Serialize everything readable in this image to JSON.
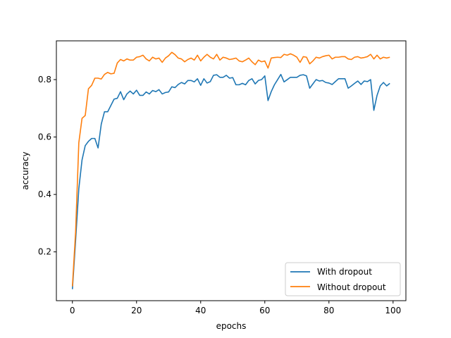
{
  "chart_data": {
    "type": "line",
    "title": "",
    "xlabel": "epochs",
    "ylabel": "accuracy",
    "xlim": [
      -5,
      104
    ],
    "ylim": [
      0.03,
      0.935
    ],
    "xticks": [
      0,
      20,
      40,
      60,
      80,
      100
    ],
    "yticks": [
      0.2,
      0.4,
      0.6,
      0.8
    ],
    "grid": false,
    "legend_position": "lower-right",
    "series": [
      {
        "name": "With dropout",
        "color": "#1f77b4",
        "x": [
          0,
          1,
          2,
          3,
          4,
          5,
          6,
          7,
          8,
          9,
          10,
          11,
          12,
          13,
          14,
          15,
          16,
          17,
          18,
          19,
          20,
          21,
          22,
          23,
          24,
          25,
          26,
          27,
          28,
          29,
          30,
          31,
          32,
          33,
          34,
          35,
          36,
          37,
          38,
          39,
          40,
          41,
          42,
          43,
          44,
          45,
          46,
          47,
          48,
          49,
          50,
          51,
          52,
          53,
          54,
          55,
          56,
          57,
          58,
          59,
          60,
          61,
          62,
          63,
          64,
          65,
          66,
          67,
          68,
          69,
          70,
          71,
          72,
          73,
          74,
          75,
          76,
          77,
          78,
          79,
          80,
          81,
          82,
          83,
          84,
          85,
          86,
          87,
          88,
          89,
          90,
          91,
          92,
          93,
          94,
          95,
          96,
          97,
          98,
          99
        ],
        "values": [
          0.07,
          0.24,
          0.42,
          0.52,
          0.57,
          0.585,
          0.595,
          0.595,
          0.562,
          0.645,
          0.688,
          0.688,
          0.71,
          0.732,
          0.735,
          0.758,
          0.73,
          0.75,
          0.76,
          0.75,
          0.763,
          0.745,
          0.745,
          0.757,
          0.75,
          0.762,
          0.758,
          0.765,
          0.75,
          0.755,
          0.757,
          0.775,
          0.772,
          0.783,
          0.79,
          0.785,
          0.797,
          0.797,
          0.792,
          0.803,
          0.78,
          0.803,
          0.788,
          0.793,
          0.815,
          0.817,
          0.808,
          0.808,
          0.815,
          0.805,
          0.807,
          0.782,
          0.782,
          0.787,
          0.782,
          0.797,
          0.803,
          0.785,
          0.797,
          0.8,
          0.813,
          0.727,
          0.758,
          0.782,
          0.8,
          0.818,
          0.792,
          0.8,
          0.808,
          0.808,
          0.808,
          0.815,
          0.817,
          0.813,
          0.77,
          0.785,
          0.8,
          0.795,
          0.797,
          0.79,
          0.788,
          0.783,
          0.793,
          0.803,
          0.803,
          0.803,
          0.77,
          0.778,
          0.787,
          0.795,
          0.783,
          0.795,
          0.793,
          0.8,
          0.693,
          0.745,
          0.778,
          0.79,
          0.778,
          0.787
        ]
      },
      {
        "name": "Without dropout",
        "color": "#ff7f0e",
        "x": [
          0,
          1,
          2,
          3,
          4,
          5,
          6,
          7,
          8,
          9,
          10,
          11,
          12,
          13,
          14,
          15,
          16,
          17,
          18,
          19,
          20,
          21,
          22,
          23,
          24,
          25,
          26,
          27,
          28,
          29,
          30,
          31,
          32,
          33,
          34,
          35,
          36,
          37,
          38,
          39,
          40,
          41,
          42,
          43,
          44,
          45,
          46,
          47,
          48,
          49,
          50,
          51,
          52,
          53,
          54,
          55,
          56,
          57,
          58,
          59,
          60,
          61,
          62,
          63,
          64,
          65,
          66,
          67,
          68,
          69,
          70,
          71,
          72,
          73,
          74,
          75,
          76,
          77,
          78,
          79,
          80,
          81,
          82,
          83,
          84,
          85,
          86,
          87,
          88,
          89,
          90,
          91,
          92,
          93,
          94,
          95,
          96,
          97,
          98,
          99
        ],
        "values": [
          0.08,
          0.27,
          0.58,
          0.665,
          0.675,
          0.768,
          0.78,
          0.805,
          0.805,
          0.802,
          0.818,
          0.825,
          0.82,
          0.822,
          0.858,
          0.87,
          0.865,
          0.872,
          0.868,
          0.868,
          0.878,
          0.88,
          0.885,
          0.872,
          0.865,
          0.878,
          0.872,
          0.875,
          0.86,
          0.875,
          0.883,
          0.895,
          0.887,
          0.875,
          0.872,
          0.862,
          0.87,
          0.875,
          0.868,
          0.885,
          0.865,
          0.878,
          0.888,
          0.878,
          0.872,
          0.888,
          0.868,
          0.878,
          0.875,
          0.87,
          0.872,
          0.875,
          0.865,
          0.862,
          0.868,
          0.875,
          0.862,
          0.852,
          0.868,
          0.862,
          0.865,
          0.84,
          0.875,
          0.877,
          0.878,
          0.877,
          0.888,
          0.885,
          0.89,
          0.885,
          0.878,
          0.86,
          0.88,
          0.878,
          0.855,
          0.865,
          0.878,
          0.875,
          0.88,
          0.883,
          0.885,
          0.872,
          0.878,
          0.878,
          0.88,
          0.88,
          0.872,
          0.87,
          0.878,
          0.88,
          0.875,
          0.877,
          0.88,
          0.888,
          0.872,
          0.885,
          0.872,
          0.878,
          0.875,
          0.878
        ]
      }
    ]
  }
}
